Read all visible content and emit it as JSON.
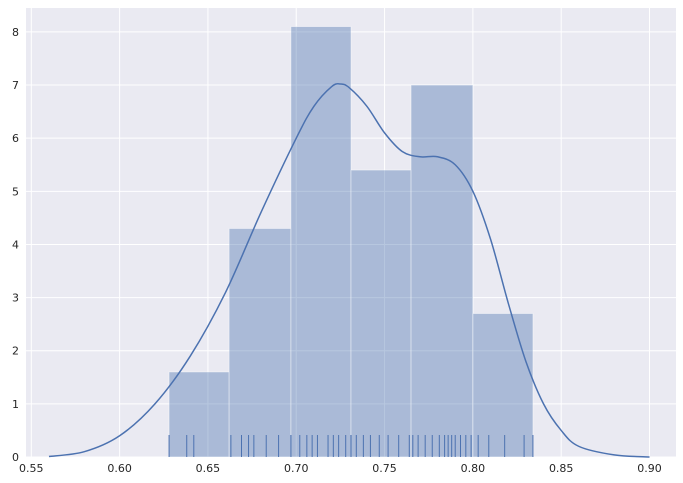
{
  "chart_data": {
    "type": "bar",
    "title": "",
    "xlabel": "",
    "ylabel": "",
    "xlim": [
      0.547,
      0.915
    ],
    "ylim": [
      0,
      8.45
    ],
    "x_ticks": [
      0.55,
      0.6,
      0.65,
      0.7,
      0.75,
      0.8,
      0.85,
      0.9
    ],
    "x_tick_labels": [
      "0.55",
      "0.60",
      "0.65",
      "0.70",
      "0.75",
      "0.80",
      "0.85",
      "0.90"
    ],
    "y_ticks": [
      0,
      1,
      2,
      3,
      4,
      5,
      6,
      7,
      8
    ],
    "y_tick_labels": [
      "0",
      "1",
      "2",
      "3",
      "4",
      "5",
      "6",
      "7",
      "8"
    ],
    "grid": true,
    "histogram": {
      "bin_edges": [
        0.628,
        0.662,
        0.697,
        0.731,
        0.765,
        0.8,
        0.834
      ],
      "values": [
        1.6,
        4.3,
        8.1,
        5.4,
        7.0,
        2.7
      ],
      "color": "#4c72b0"
    },
    "kde": {
      "x": [
        0.56,
        0.58,
        0.6,
        0.62,
        0.64,
        0.66,
        0.68,
        0.7,
        0.71,
        0.72,
        0.725,
        0.73,
        0.74,
        0.75,
        0.76,
        0.77,
        0.78,
        0.79,
        0.8,
        0.81,
        0.82,
        0.83,
        0.84,
        0.85,
        0.86,
        0.88,
        0.9
      ],
      "y": [
        0.01,
        0.1,
        0.4,
        1.0,
        1.9,
        3.1,
        4.6,
        6.0,
        6.6,
        6.97,
        7.02,
        6.95,
        6.6,
        6.1,
        5.75,
        5.65,
        5.65,
        5.5,
        5.0,
        4.1,
        2.9,
        1.8,
        1.0,
        0.5,
        0.2,
        0.04,
        0.0
      ],
      "color": "#4c72b0"
    },
    "rug": {
      "x": [
        0.628,
        0.638,
        0.642,
        0.663,
        0.669,
        0.673,
        0.676,
        0.683,
        0.69,
        0.697,
        0.702,
        0.706,
        0.709,
        0.712,
        0.718,
        0.721,
        0.724,
        0.728,
        0.731,
        0.734,
        0.738,
        0.742,
        0.747,
        0.752,
        0.758,
        0.764,
        0.766,
        0.769,
        0.773,
        0.777,
        0.781,
        0.784,
        0.786,
        0.788,
        0.79,
        0.793,
        0.796,
        0.799,
        0.803,
        0.809,
        0.818,
        0.829,
        0.834
      ],
      "color": "#4c72b0"
    }
  }
}
